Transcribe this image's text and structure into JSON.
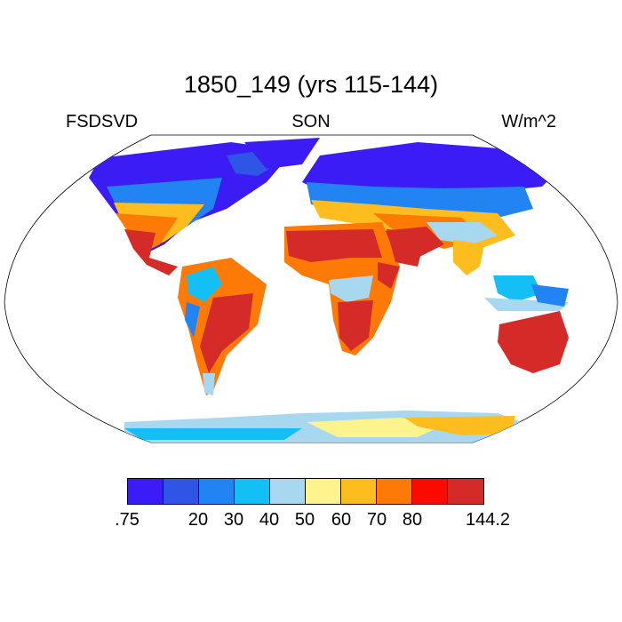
{
  "title": "1850_149 (yrs 115-144)",
  "left_label": "FSDSVD",
  "center_label": "SON",
  "right_label": "W/m^2",
  "colorbar": {
    "colors": [
      "#3c1cf5",
      "#2e55e6",
      "#2283f2",
      "#13bff5",
      "#a8d8f0",
      "#fef38c",
      "#fdbd1e",
      "#fd7a07",
      "#fb0a00",
      "#d42b28"
    ],
    "labels": [
      ".75",
      "20",
      "30",
      "40",
      "50",
      "60",
      "70",
      "80",
      "144.2"
    ]
  }
}
